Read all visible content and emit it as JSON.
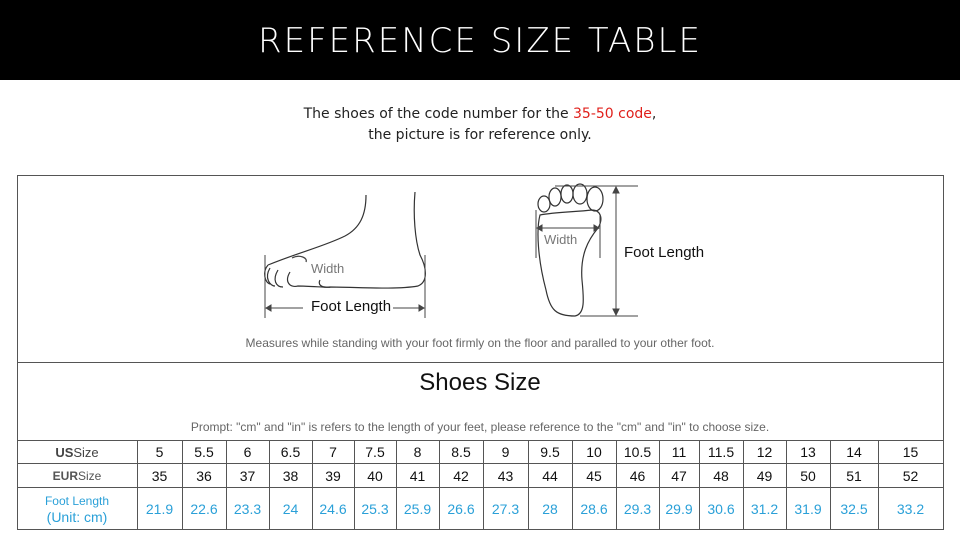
{
  "banner": {
    "title": "REFERENCE SIZE TABLE"
  },
  "intro": {
    "line1_prefix": "The shoes of the code number for the ",
    "line1_highlight": "35-50 code",
    "line1_suffix": ",",
    "line2": "the picture is for reference only.",
    "highlight_color": "#e0201b"
  },
  "diagram": {
    "width_label_side": "Width",
    "foot_length_side": "Foot Length",
    "width_label_sole": "Width",
    "foot_length_sole": "Foot Length",
    "caption": "Measures while standing with your foot firmly on the floor and paralled to your other foot."
  },
  "size_section": {
    "title": "Shoes Size",
    "prompt": "Prompt: \"cm\" and \"in\" is refers to the length of your feet, please reference to the \"cm\" and \"in\" to choose size."
  },
  "table": {
    "rows": [
      {
        "label_bold": "US",
        "label_rest": " Size",
        "values": [
          "5",
          "5.5",
          "6",
          "6.5",
          "7",
          "7.5",
          "8",
          "8.5",
          "9",
          "9.5",
          "10",
          "10.5",
          "11",
          "11.5",
          "12",
          "13",
          "14",
          "15"
        ]
      },
      {
        "label_bold": "EUR",
        "label_rest": " Size",
        "values": [
          "35",
          "36",
          "37",
          "38",
          "39",
          "40",
          "41",
          "42",
          "43",
          "44",
          "45",
          "46",
          "47",
          "48",
          "49",
          "50",
          "51",
          "52"
        ]
      },
      {
        "label_line1": "Foot Length",
        "label_line2": "(Unit: cm)",
        "values": [
          "21.9",
          "22.6",
          "23.3",
          "24",
          "24.6",
          "25.3",
          "25.9",
          "26.6",
          "27.3",
          "28",
          "28.6",
          "29.3",
          "29.9",
          "30.6",
          "31.2",
          "31.9",
          "32.5",
          "33.2"
        ]
      }
    ],
    "value_color": "#2aa0d8"
  }
}
